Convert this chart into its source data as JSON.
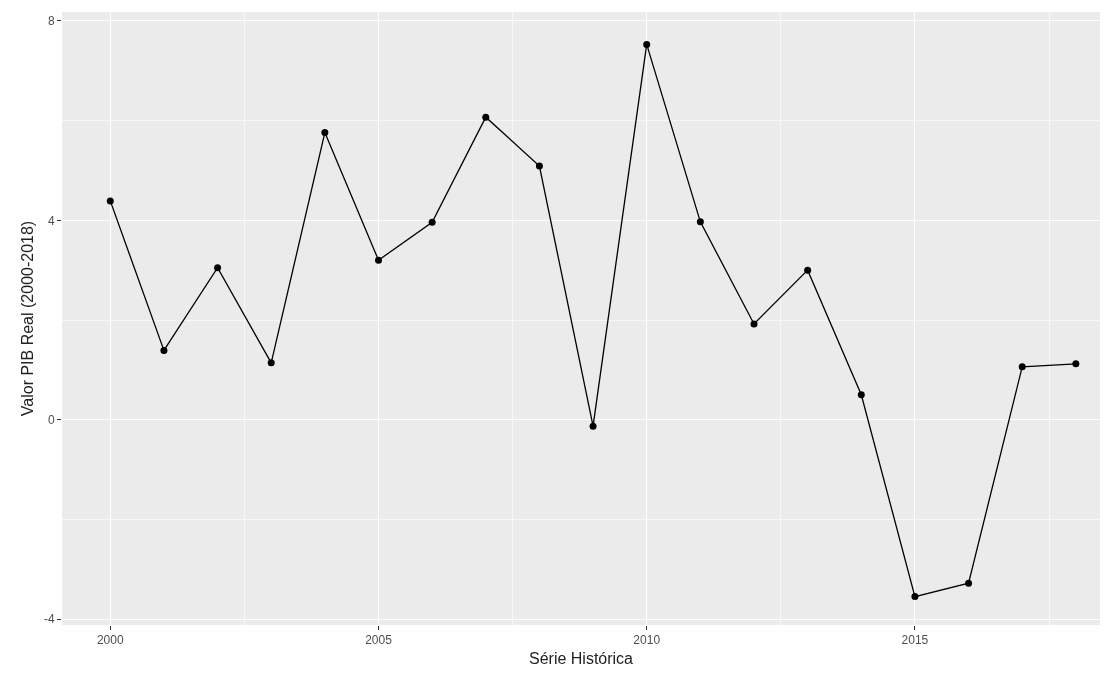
{
  "chart_data": {
    "type": "line",
    "xlabel": "Série Histórica",
    "ylabel": "Valor PIB Real (2000-2018)",
    "x": [
      2000,
      2001,
      2002,
      2003,
      2004,
      2005,
      2006,
      2007,
      2008,
      2009,
      2010,
      2011,
      2012,
      2013,
      2014,
      2015,
      2016,
      2017,
      2018
    ],
    "series": [
      {
        "color": "#000000",
        "values": [
          4.39,
          1.39,
          3.05,
          1.14,
          5.76,
          3.2,
          3.96,
          6.07,
          5.09,
          -0.13,
          7.53,
          3.97,
          1.92,
          3.0,
          0.5,
          -3.55,
          -3.28,
          1.06,
          1.12
        ]
      }
    ],
    "xlim": [
      1999.1,
      2018.45
    ],
    "xticks": [
      2000,
      2005,
      2010,
      2015
    ],
    "ylim": [
      -4.12,
      8.18
    ],
    "yticks": [
      -4,
      0,
      4,
      8
    ],
    "grid": true,
    "marker": "circle",
    "line_style": "solid"
  }
}
